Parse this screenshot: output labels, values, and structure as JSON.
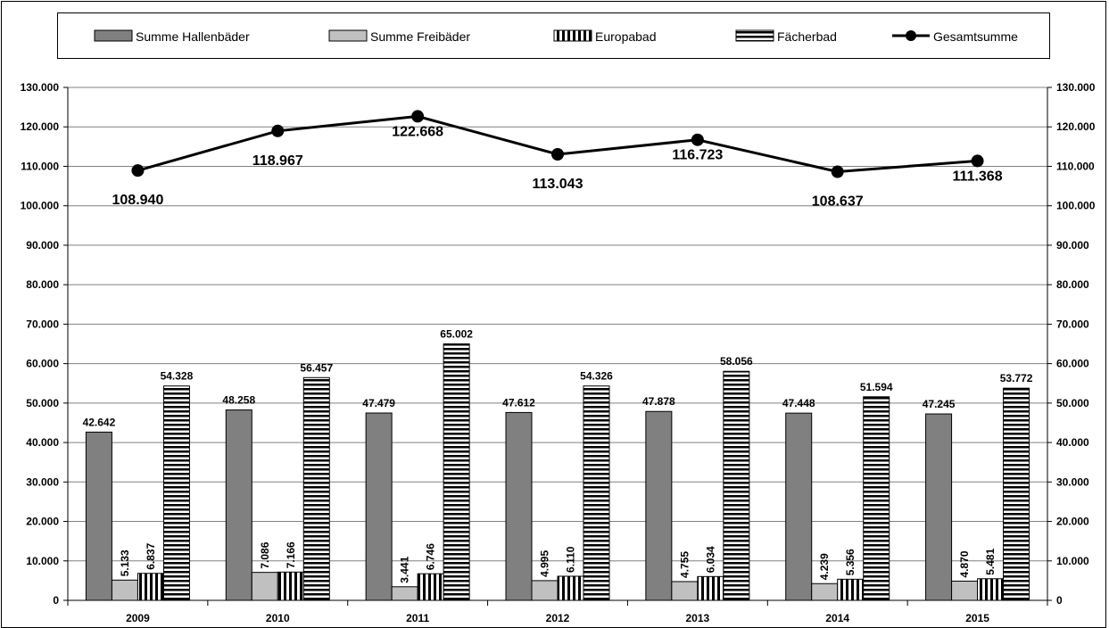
{
  "chart_data": {
    "type": "bar",
    "categories": [
      "2009",
      "2010",
      "2011",
      "2012",
      "2013",
      "2014",
      "2015"
    ],
    "ylim": [
      0,
      130000
    ],
    "yticks": [
      "0",
      "10.000",
      "20.000",
      "30.000",
      "40.000",
      "50.000",
      "60.000",
      "70.000",
      "80.000",
      "90.000",
      "100.000",
      "110.000",
      "120.000",
      "130.000"
    ],
    "grid": true,
    "legend_position": "top",
    "bar_series": [
      {
        "name": "Summe Hallenbäder",
        "values": [
          42642,
          48258,
          47479,
          47612,
          47878,
          47448,
          47245
        ],
        "labels": [
          "42.642",
          "48.258",
          "47.479",
          "47.612",
          "47.878",
          "47.448",
          "47.245"
        ],
        "fill": "#808080",
        "pattern": "solid"
      },
      {
        "name": "Summe Freibäder",
        "values": [
          5133,
          7086,
          3441,
          4995,
          4755,
          4239,
          4870
        ],
        "labels": [
          "5.133",
          "7.086",
          "3.441",
          "4.995",
          "4.755",
          "4.239",
          "4.870"
        ],
        "fill": "#c0c0c0",
        "pattern": "solid"
      },
      {
        "name": "Europabad",
        "values": [
          6837,
          7166,
          6746,
          6110,
          6034,
          5356,
          5481
        ],
        "labels": [
          "6.837",
          "7.166",
          "6.746",
          "6.110",
          "6.034",
          "5.356",
          "5.481"
        ],
        "fill": "#000000",
        "pattern": "vertical-stripes"
      },
      {
        "name": "Fächerbad",
        "values": [
          54328,
          56457,
          65002,
          54326,
          58056,
          51594,
          53772
        ],
        "labels": [
          "54.328",
          "56.457",
          "65.002",
          "54.326",
          "58.056",
          "51.594",
          "53.772"
        ],
        "fill": "#000000",
        "pattern": "horizontal-stripes"
      }
    ],
    "line_series": {
      "name": "Gesamtsumme",
      "values": [
        108940,
        118967,
        122668,
        113043,
        116723,
        108637,
        111368
      ],
      "labels": [
        "108.940",
        "118.967",
        "122.668",
        "113.043",
        "116.723",
        "108.637",
        "111.368"
      ],
      "color": "#000000"
    }
  }
}
